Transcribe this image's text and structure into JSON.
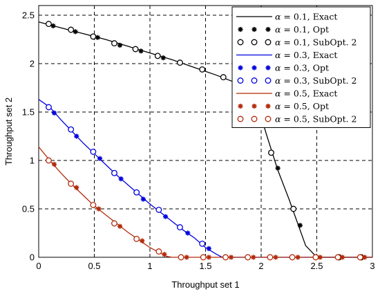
{
  "chart_data": {
    "type": "line",
    "xlabel": "Throughput set 1",
    "ylabel": "Throughput set 2",
    "xlim": [
      0,
      3
    ],
    "ylim": [
      0,
      2.6
    ],
    "xticks": [
      "0",
      "0.5",
      "1",
      "1.5",
      "2",
      "2.5",
      "3"
    ],
    "yticks": [
      "0",
      "0.5",
      "1",
      "1.5",
      "2",
      "2.5"
    ],
    "xtick_values": [
      0,
      0.5,
      1,
      1.5,
      2,
      2.5,
      3
    ],
    "ytick_values": [
      0,
      0.5,
      1,
      1.5,
      2,
      2.5
    ],
    "grid": true,
    "legend_position": "top-right",
    "series": [
      {
        "name": "α = 0.1, Exact",
        "alpha_value": "0.1",
        "kind": "Exact",
        "style": "line",
        "color": "#000000",
        "x": [
          0,
          0.2,
          0.4,
          0.6,
          0.8,
          1.0,
          1.2,
          1.4,
          1.6,
          1.8,
          1.95,
          2.05,
          2.15,
          2.25,
          2.3,
          2.35,
          2.4,
          2.45,
          2.5,
          2.6,
          2.8,
          3.0
        ],
        "y": [
          2.43,
          2.37,
          2.31,
          2.25,
          2.18,
          2.11,
          2.04,
          1.96,
          1.88,
          1.79,
          1.65,
          1.26,
          0.9,
          0.6,
          0.44,
          0.28,
          0.12,
          0.06,
          0,
          0,
          0,
          0
        ]
      },
      {
        "name": "α = 0.1, Opt",
        "alpha_value": "0.1",
        "kind": "Opt",
        "style": "star",
        "color": "#000000",
        "x": [
          0.13,
          0.33,
          0.53,
          0.73,
          0.92,
          1.12,
          2.15,
          2.35
        ],
        "y": [
          2.39,
          2.33,
          2.27,
          2.19,
          2.13,
          2.06,
          0.92,
          0.33
        ]
      },
      {
        "name": "α = 0.1, SubOpt. 2",
        "alpha_value": "0.1",
        "kind": "SubOpt. 2",
        "style": "circle",
        "color": "#000000",
        "x": [
          0.09,
          0.29,
          0.49,
          0.68,
          0.87,
          1.07,
          1.27,
          1.47,
          1.66,
          2.09,
          2.29,
          2.7,
          2.9
        ],
        "y": [
          2.41,
          2.35,
          2.28,
          2.21,
          2.15,
          2.08,
          2.01,
          1.94,
          1.86,
          1.08,
          0.5,
          0,
          0
        ]
      },
      {
        "name": "α = 0.3, Exact",
        "alpha_value": "0.3",
        "kind": "Exact",
        "style": "line",
        "color": "#0000dd",
        "x": [
          0,
          0.1,
          0.2,
          0.3,
          0.4,
          0.5,
          0.6,
          0.7,
          0.8,
          0.9,
          1.0,
          1.1,
          1.2,
          1.3,
          1.4,
          1.5,
          1.6,
          1.65,
          1.7,
          1.8,
          2.0,
          2.2,
          2.4,
          2.6,
          2.8,
          3.0
        ],
        "y": [
          1.63,
          1.55,
          1.42,
          1.3,
          1.18,
          1.07,
          0.96,
          0.85,
          0.75,
          0.65,
          0.55,
          0.46,
          0.37,
          0.28,
          0.2,
          0.1,
          0.03,
          0,
          0,
          0,
          0,
          0,
          0,
          0,
          0,
          0
        ]
      },
      {
        "name": "α = 0.3, Opt",
        "alpha_value": "0.3",
        "kind": "Opt",
        "style": "star",
        "color": "#0000dd",
        "x": [
          0.14,
          0.34,
          0.55,
          0.74,
          0.94,
          1.14,
          1.34,
          1.53
        ],
        "y": [
          1.49,
          1.25,
          1.02,
          0.81,
          0.6,
          0.42,
          0.25,
          0.09
        ]
      },
      {
        "name": "α = 0.3, SubOpt. 2",
        "alpha_value": "0.3",
        "kind": "SubOpt. 2",
        "style": "circle",
        "color": "#0000dd",
        "x": [
          0.09,
          0.29,
          0.49,
          0.68,
          0.88,
          1.08,
          1.27,
          1.47
        ],
        "y": [
          1.55,
          1.32,
          1.09,
          0.87,
          0.67,
          0.49,
          0.31,
          0.14
        ]
      },
      {
        "name": "α = 0.5, Exact",
        "alpha_value": "0.5",
        "kind": "Exact",
        "style": "line",
        "color": "#b22a0a",
        "x": [
          0,
          0.1,
          0.2,
          0.3,
          0.4,
          0.5,
          0.6,
          0.7,
          0.8,
          0.9,
          1.0,
          1.1,
          1.15,
          1.2,
          1.3,
          1.5,
          1.7,
          1.9,
          2.1,
          2.3,
          2.5,
          2.7,
          2.9,
          3.0
        ],
        "y": [
          1.14,
          1.0,
          0.87,
          0.75,
          0.64,
          0.53,
          0.44,
          0.35,
          0.26,
          0.18,
          0.1,
          0.04,
          0.01,
          0,
          0,
          0,
          0,
          0,
          0,
          0,
          0,
          0,
          0,
          0
        ]
      },
      {
        "name": "α = 0.5, Opt",
        "alpha_value": "0.5",
        "kind": "Opt",
        "style": "star",
        "color": "#b22a0a",
        "x": [
          0.14,
          0.34,
          0.54,
          0.73,
          0.93,
          1.13,
          1.33,
          1.53,
          1.73,
          1.93,
          2.13,
          2.33,
          2.53,
          2.73,
          2.93
        ],
        "y": [
          0.96,
          0.72,
          0.5,
          0.32,
          0.17,
          0.03,
          0,
          0,
          0,
          0,
          0,
          0,
          0,
          0,
          0
        ]
      },
      {
        "name": "α = 0.5, SubOpt. 2",
        "alpha_value": "0.5",
        "kind": "SubOpt. 2",
        "style": "circle",
        "color": "#b22a0a",
        "x": [
          0.09,
          0.29,
          0.49,
          0.68,
          0.88,
          1.08,
          1.28,
          1.48,
          1.68,
          1.88,
          2.08,
          2.28,
          2.49,
          2.69,
          2.89
        ],
        "y": [
          1.0,
          0.76,
          0.54,
          0.35,
          0.19,
          0.06,
          0,
          0,
          0,
          0,
          0,
          0,
          0,
          0,
          0
        ]
      }
    ]
  }
}
